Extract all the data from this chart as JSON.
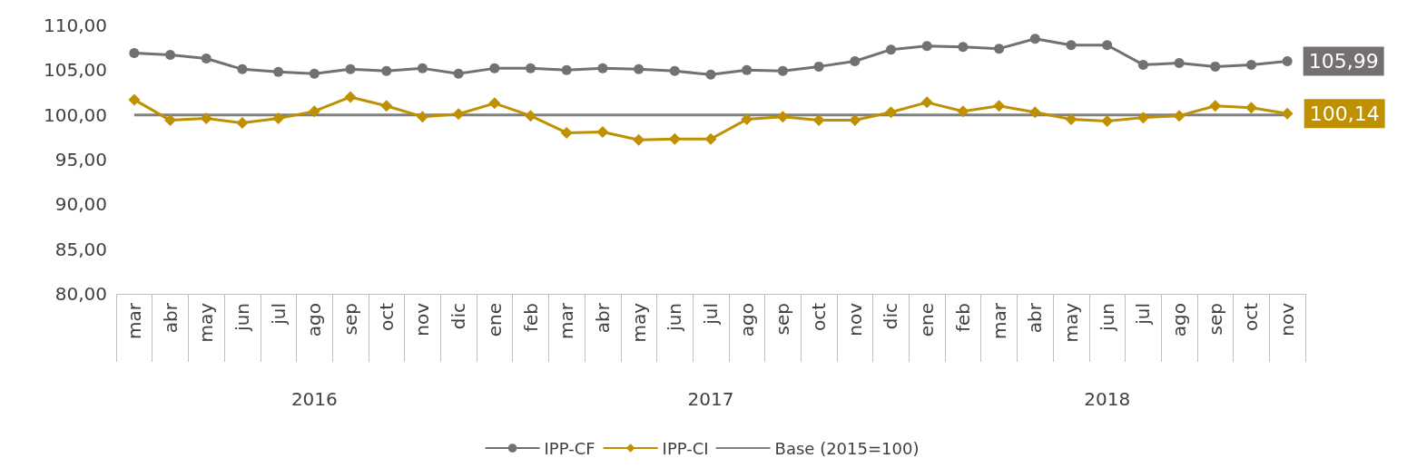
{
  "chart_data": {
    "type": "line",
    "categories": [
      "mar",
      "abr",
      "may",
      "jun",
      "jul",
      "ago",
      "sep",
      "oct",
      "nov",
      "dic",
      "ene",
      "feb",
      "mar",
      "abr",
      "may",
      "jun",
      "jul",
      "ago",
      "sep",
      "oct",
      "nov",
      "dic",
      "ene",
      "feb",
      "mar",
      "abr",
      "may",
      "jun",
      "jul",
      "ago",
      "sep",
      "oct",
      "nov"
    ],
    "series": [
      {
        "name": "IPP-CF",
        "color": "#747070",
        "marker": "circle",
        "values": [
          106.9,
          106.7,
          106.3,
          105.1,
          104.8,
          104.6,
          105.1,
          104.9,
          105.2,
          104.6,
          105.2,
          105.2,
          105.0,
          105.2,
          105.1,
          104.9,
          104.5,
          105.0,
          104.9,
          105.4,
          106.0,
          107.3,
          107.7,
          107.6,
          107.4,
          108.5,
          107.8,
          107.8,
          105.6,
          105.8,
          105.4,
          105.6,
          105.99
        ],
        "value_labels": [
          null,
          null,
          null,
          null,
          null,
          null,
          null,
          null,
          null,
          null,
          null,
          null,
          null,
          null,
          null,
          null,
          null,
          null,
          null,
          null,
          null,
          null,
          null,
          null,
          null,
          null,
          null,
          null,
          null,
          null,
          null,
          null,
          "105,99"
        ]
      },
      {
        "name": "IPP-CI",
        "color": "#bf9000",
        "marker": "diamond",
        "values": [
          101.7,
          99.4,
          99.6,
          99.1,
          99.6,
          100.4,
          102.0,
          101.0,
          99.8,
          100.1,
          101.3,
          99.9,
          98.0,
          98.1,
          97.2,
          97.3,
          97.3,
          99.5,
          99.8,
          99.4,
          99.4,
          100.3,
          101.4,
          100.4,
          101.0,
          100.3,
          99.5,
          99.3,
          99.7,
          99.9,
          101.0,
          100.8,
          100.14
        ],
        "value_labels": [
          null,
          null,
          null,
          null,
          null,
          null,
          null,
          null,
          null,
          null,
          null,
          null,
          null,
          null,
          null,
          null,
          null,
          null,
          null,
          null,
          null,
          null,
          null,
          null,
          null,
          null,
          null,
          null,
          null,
          null,
          null,
          null,
          "100,14"
        ]
      },
      {
        "name": "Base (2015=100)",
        "color": "#808080",
        "marker": "none",
        "values": [
          100,
          100,
          100,
          100,
          100,
          100,
          100,
          100,
          100,
          100,
          100,
          100,
          100,
          100,
          100,
          100,
          100,
          100,
          100,
          100,
          100,
          100,
          100,
          100,
          100,
          100,
          100,
          100,
          100,
          100,
          100,
          100,
          100
        ]
      }
    ],
    "ylim": [
      80,
      110
    ],
    "yticks": [
      {
        "value": 80,
        "label": "80,00"
      },
      {
        "value": 85,
        "label": "85,00"
      },
      {
        "value": 90,
        "label": "90,00"
      },
      {
        "value": 95,
        "label": "95,00"
      },
      {
        "value": 100,
        "label": "100,00"
      },
      {
        "value": 105,
        "label": "105,00"
      },
      {
        "value": 110,
        "label": "110,00"
      }
    ],
    "annotations": [
      "2016",
      "2017",
      "2018"
    ],
    "grid": false,
    "legend": "bottom"
  }
}
